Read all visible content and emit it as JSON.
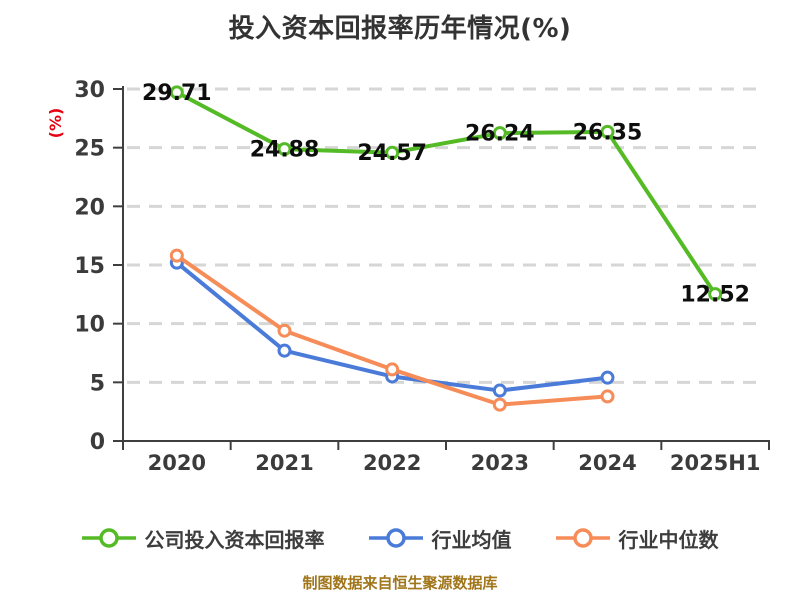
{
  "chart_data": {
    "type": "line",
    "title": "投入资本回报率历年情况(%)",
    "ylabel": "(%)",
    "footer": "制图数据来自恒生聚源数据库",
    "categories": [
      "2020",
      "2021",
      "2022",
      "2023",
      "2024",
      "2025H1"
    ],
    "y_ticks": [
      "0",
      "5",
      "10",
      "15",
      "20",
      "25",
      "30"
    ],
    "ylim": [
      0,
      30
    ],
    "grid": "horizontal-dashed",
    "legend_position": "bottom",
    "series": [
      {
        "name": "公司投入资本回报率",
        "color": "#54bb26",
        "values": [
          29.71,
          24.88,
          24.57,
          26.24,
          26.35,
          12.52
        ],
        "point_labels": [
          "29.71",
          "24.88",
          "24.57",
          "26.24",
          "26.35",
          "12.52"
        ]
      },
      {
        "name": "行业均值",
        "color": "#4a7bd9",
        "values": [
          15.2,
          7.7,
          5.5,
          4.3,
          5.4
        ],
        "point_labels": []
      },
      {
        "name": "行业中位数",
        "color": "#f68c58",
        "values": [
          15.8,
          9.4,
          6.1,
          3.1,
          3.8
        ],
        "point_labels": []
      }
    ],
    "colors": {
      "title": "#333333",
      "axis": "#3f3f3f",
      "tick_text": "#3b3b3b",
      "grid": "#d6d6d6",
      "data_label": "#0d0d0d",
      "ylabel": "#e60012",
      "footer": "#a1761b",
      "marker_fill": "#ffffff"
    }
  }
}
